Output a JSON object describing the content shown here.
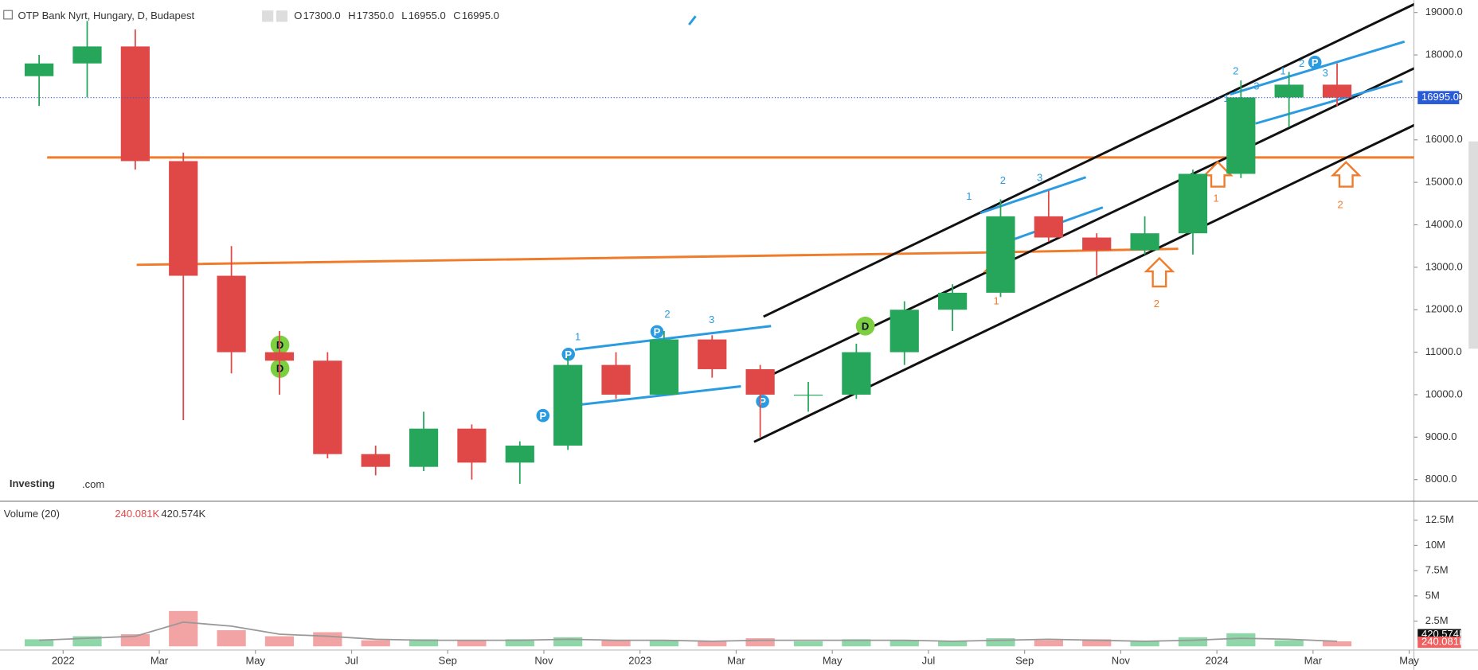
{
  "header": {
    "title": "OTP Bank Nyrt, Hungary, D, Budapest",
    "ohlc": [
      {
        "key": "O",
        "value": "17300.0"
      },
      {
        "key": "H",
        "value": "17350.0"
      },
      {
        "key": "L",
        "value": "16955.0"
      },
      {
        "key": "C",
        "value": "16995.0"
      }
    ],
    "logo": "Investing",
    "logo_suffix": ".com"
  },
  "chart_data": {
    "type": "candlestick",
    "x": [
      "2021-12",
      "2022-01",
      "2022-02",
      "2022-03",
      "2022-04",
      "2022-05",
      "2022-06",
      "2022-07",
      "2022-08",
      "2022-09",
      "2022-10",
      "2022-11",
      "2022-12",
      "2023-01",
      "2023-02",
      "2023-03",
      "2023-04",
      "2023-05",
      "2023-06",
      "2023-07",
      "2023-08",
      "2023-09",
      "2023-10",
      "2023-11",
      "2023-12",
      "2024-01",
      "2024-02",
      "2024-03"
    ],
    "open": [
      17500,
      17800,
      18200,
      15500,
      12800,
      11000,
      10800,
      8600,
      8300,
      9200,
      8400,
      8800,
      10700,
      10000,
      11300,
      10600,
      10000,
      10000,
      11000,
      12000,
      12400,
      14200,
      13700,
      13400,
      13800,
      15200,
      17000,
      17300
    ],
    "high": [
      18000,
      18800,
      18600,
      15700,
      13500,
      11500,
      11000,
      8800,
      9600,
      9300,
      8900,
      10900,
      11000,
      11500,
      11400,
      10700,
      10300,
      11200,
      12200,
      12600,
      14600,
      14800,
      13800,
      14200,
      15300,
      17400,
      17600,
      17800
    ],
    "low": [
      16800,
      17000,
      15300,
      9400,
      10500,
      10000,
      8500,
      8100,
      8200,
      8000,
      7900,
      8700,
      9900,
      10000,
      10400,
      9000,
      9600,
      9900,
      10700,
      11500,
      12300,
      13600,
      12800,
      13300,
      13300,
      15100,
      16300,
      16800
    ],
    "close": [
      17800,
      18200,
      15500,
      12800,
      11000,
      10800,
      8600,
      8300,
      9200,
      8400,
      8800,
      10700,
      10000,
      11300,
      10600,
      10000,
      10000,
      11000,
      12000,
      12400,
      14200,
      13700,
      13400,
      13800,
      15200,
      17000,
      17300,
      16995
    ],
    "up_color": "#26a65b",
    "down_color": "#e04848",
    "xlim": [
      "2021-11",
      "2024-05"
    ],
    "xticks": [
      {
        "value": "2022-01",
        "label": "2022"
      },
      {
        "value": "2022-03",
        "label": "Mar"
      },
      {
        "value": "2022-05",
        "label": "May"
      },
      {
        "value": "2022-07",
        "label": "Jul"
      },
      {
        "value": "2022-09",
        "label": "Sep"
      },
      {
        "value": "2022-11",
        "label": "Nov"
      },
      {
        "value": "2023-01",
        "label": "2023"
      },
      {
        "value": "2023-03",
        "label": "Mar"
      },
      {
        "value": "2023-05",
        "label": "May"
      },
      {
        "value": "2023-07",
        "label": "Jul"
      },
      {
        "value": "2023-09",
        "label": "Sep"
      },
      {
        "value": "2023-11",
        "label": "Nov"
      },
      {
        "value": "2024-01",
        "label": "2024"
      },
      {
        "value": "2024-03",
        "label": "Mar"
      },
      {
        "value": "2024-05",
        "label": "May"
      }
    ],
    "ylim": [
      7490,
      19290
    ],
    "yticks": [
      {
        "value": 8000,
        "label": "8000.0"
      },
      {
        "value": 9000,
        "label": "9000.0"
      },
      {
        "value": 10000,
        "label": "10000.0"
      },
      {
        "value": 11000,
        "label": "11000.0"
      },
      {
        "value": 12000,
        "label": "12000.0"
      },
      {
        "value": 13000,
        "label": "13000.0"
      },
      {
        "value": 14000,
        "label": "14000.0"
      },
      {
        "value": 15000,
        "label": "15000.0"
      },
      {
        "value": 16000,
        "label": "16000.0"
      },
      {
        "value": 17000,
        "label": "17000.0"
      },
      {
        "value": 18000,
        "label": "18000.0"
      },
      {
        "value": 19000,
        "label": "19000.0"
      }
    ],
    "last_price": {
      "value": 16995,
      "label": "16995.0"
    },
    "volume": {
      "title": "Volume (20)",
      "last_label": "240.081K",
      "ma_label": "420.574K",
      "values": [
        700000,
        1000000,
        1200000,
        3500000,
        1600000,
        1000000,
        1400000,
        600000,
        700000,
        600000,
        700000,
        900000,
        600000,
        600000,
        500000,
        800000,
        500000,
        700000,
        600000,
        500000,
        800000,
        600000,
        700000,
        500000,
        900000,
        1300000,
        600000,
        500000
      ],
      "ma": [
        600000,
        800000,
        1000000,
        2400000,
        2000000,
        1200000,
        1000000,
        700000,
        600000,
        600000,
        600000,
        700000,
        600000,
        600000,
        500000,
        600000,
        600000,
        600000,
        600000,
        500000,
        600000,
        700000,
        600000,
        500000,
        600000,
        800000,
        700000,
        500000
      ],
      "ylim": [
        -370000,
        14100000
      ],
      "yticks": [
        {
          "value": 2500000,
          "label": "2.5M"
        },
        {
          "value": 5000000,
          "label": "5M"
        },
        {
          "value": 7500000,
          "label": "7.5M"
        },
        {
          "value": 10000000,
          "label": "10M"
        },
        {
          "value": 12500000,
          "label": "12.5M"
        }
      ]
    },
    "annotations": {
      "orange_labels": [
        "1",
        "2",
        "1",
        "2"
      ],
      "blue_labels": [
        "1",
        "2",
        "3",
        "1",
        "2",
        "3",
        "2",
        "1",
        "3",
        "1",
        "2",
        "3"
      ],
      "markers": [
        "P",
        "P",
        "P",
        "P",
        "P",
        "D",
        "D",
        "D"
      ]
    }
  }
}
